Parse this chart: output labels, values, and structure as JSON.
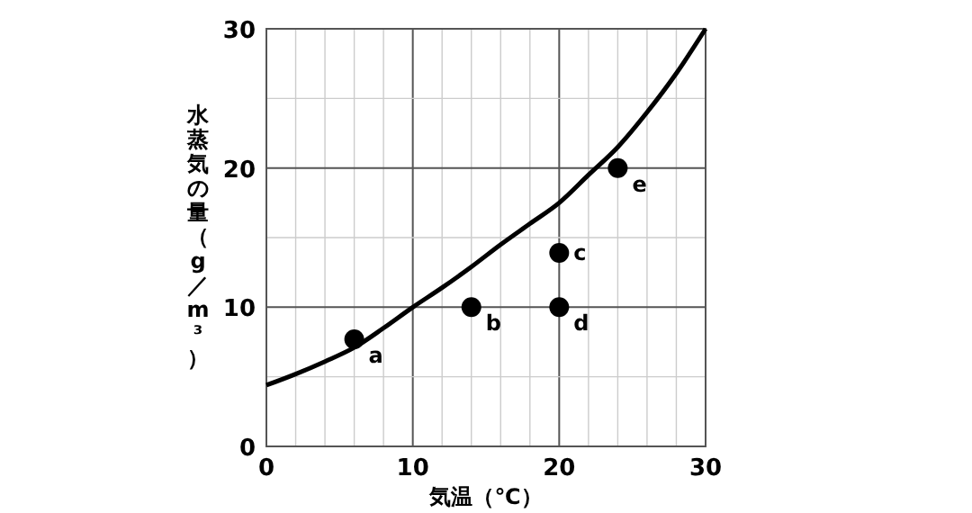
{
  "chart_data": {
    "type": "line",
    "xlabel": "気温（℃）",
    "ylabel": "水蒸気の量（g／m³）",
    "xlim": [
      0,
      30
    ],
    "ylim": [
      0,
      30
    ],
    "xticks": [
      0,
      {
        "value": 2,
        "label": null
      },
      {
        "value": 4,
        "label": null
      },
      {
        "value": 6,
        "label": null
      },
      {
        "value": 8,
        "label": null
      },
      10,
      {
        "value": 12,
        "label": null
      },
      {
        "value": 14,
        "label": null
      },
      {
        "value": 16,
        "label": null
      },
      {
        "value": 18,
        "label": null
      },
      20,
      {
        "value": 22,
        "label": null
      },
      {
        "value": 24,
        "label": null
      },
      {
        "value": 26,
        "label": null
      },
      {
        "value": 28,
        "label": null
      },
      30
    ],
    "yticks": [
      0,
      {
        "value": 5,
        "label": null
      },
      10,
      {
        "value": 15,
        "label": null
      },
      20,
      {
        "value": 25,
        "label": null
      },
      30
    ],
    "grid": true,
    "series": [
      {
        "color": "#000000",
        "x": [
          0,
          2,
          4,
          6,
          8,
          10,
          12,
          14,
          16,
          18,
          20,
          22,
          24,
          26,
          28,
          30
        ],
        "values": [
          4.4,
          5.2,
          6.1,
          7.1,
          8.5,
          10,
          11.4,
          12.9,
          14.5,
          16,
          17.5,
          19.5,
          21.5,
          24,
          26.8,
          30
        ]
      },
      {
        "type": "scatter",
        "color": "#000000",
        "marker": "circle",
        "x": [
          6,
          14,
          20,
          20,
          24
        ],
        "values": [
          7.7,
          10,
          13.9,
          10,
          20
        ]
      }
    ],
    "annotations": [
      {
        "text": "a",
        "x": 6,
        "y": 7.7
      },
      {
        "text": "b",
        "x": 14,
        "y": 10
      },
      {
        "text": "c",
        "x": 20,
        "y": 13.9
      },
      {
        "text": "d",
        "x": 20,
        "y": 10
      },
      {
        "text": "e",
        "x": 24,
        "y": 20
      }
    ]
  }
}
